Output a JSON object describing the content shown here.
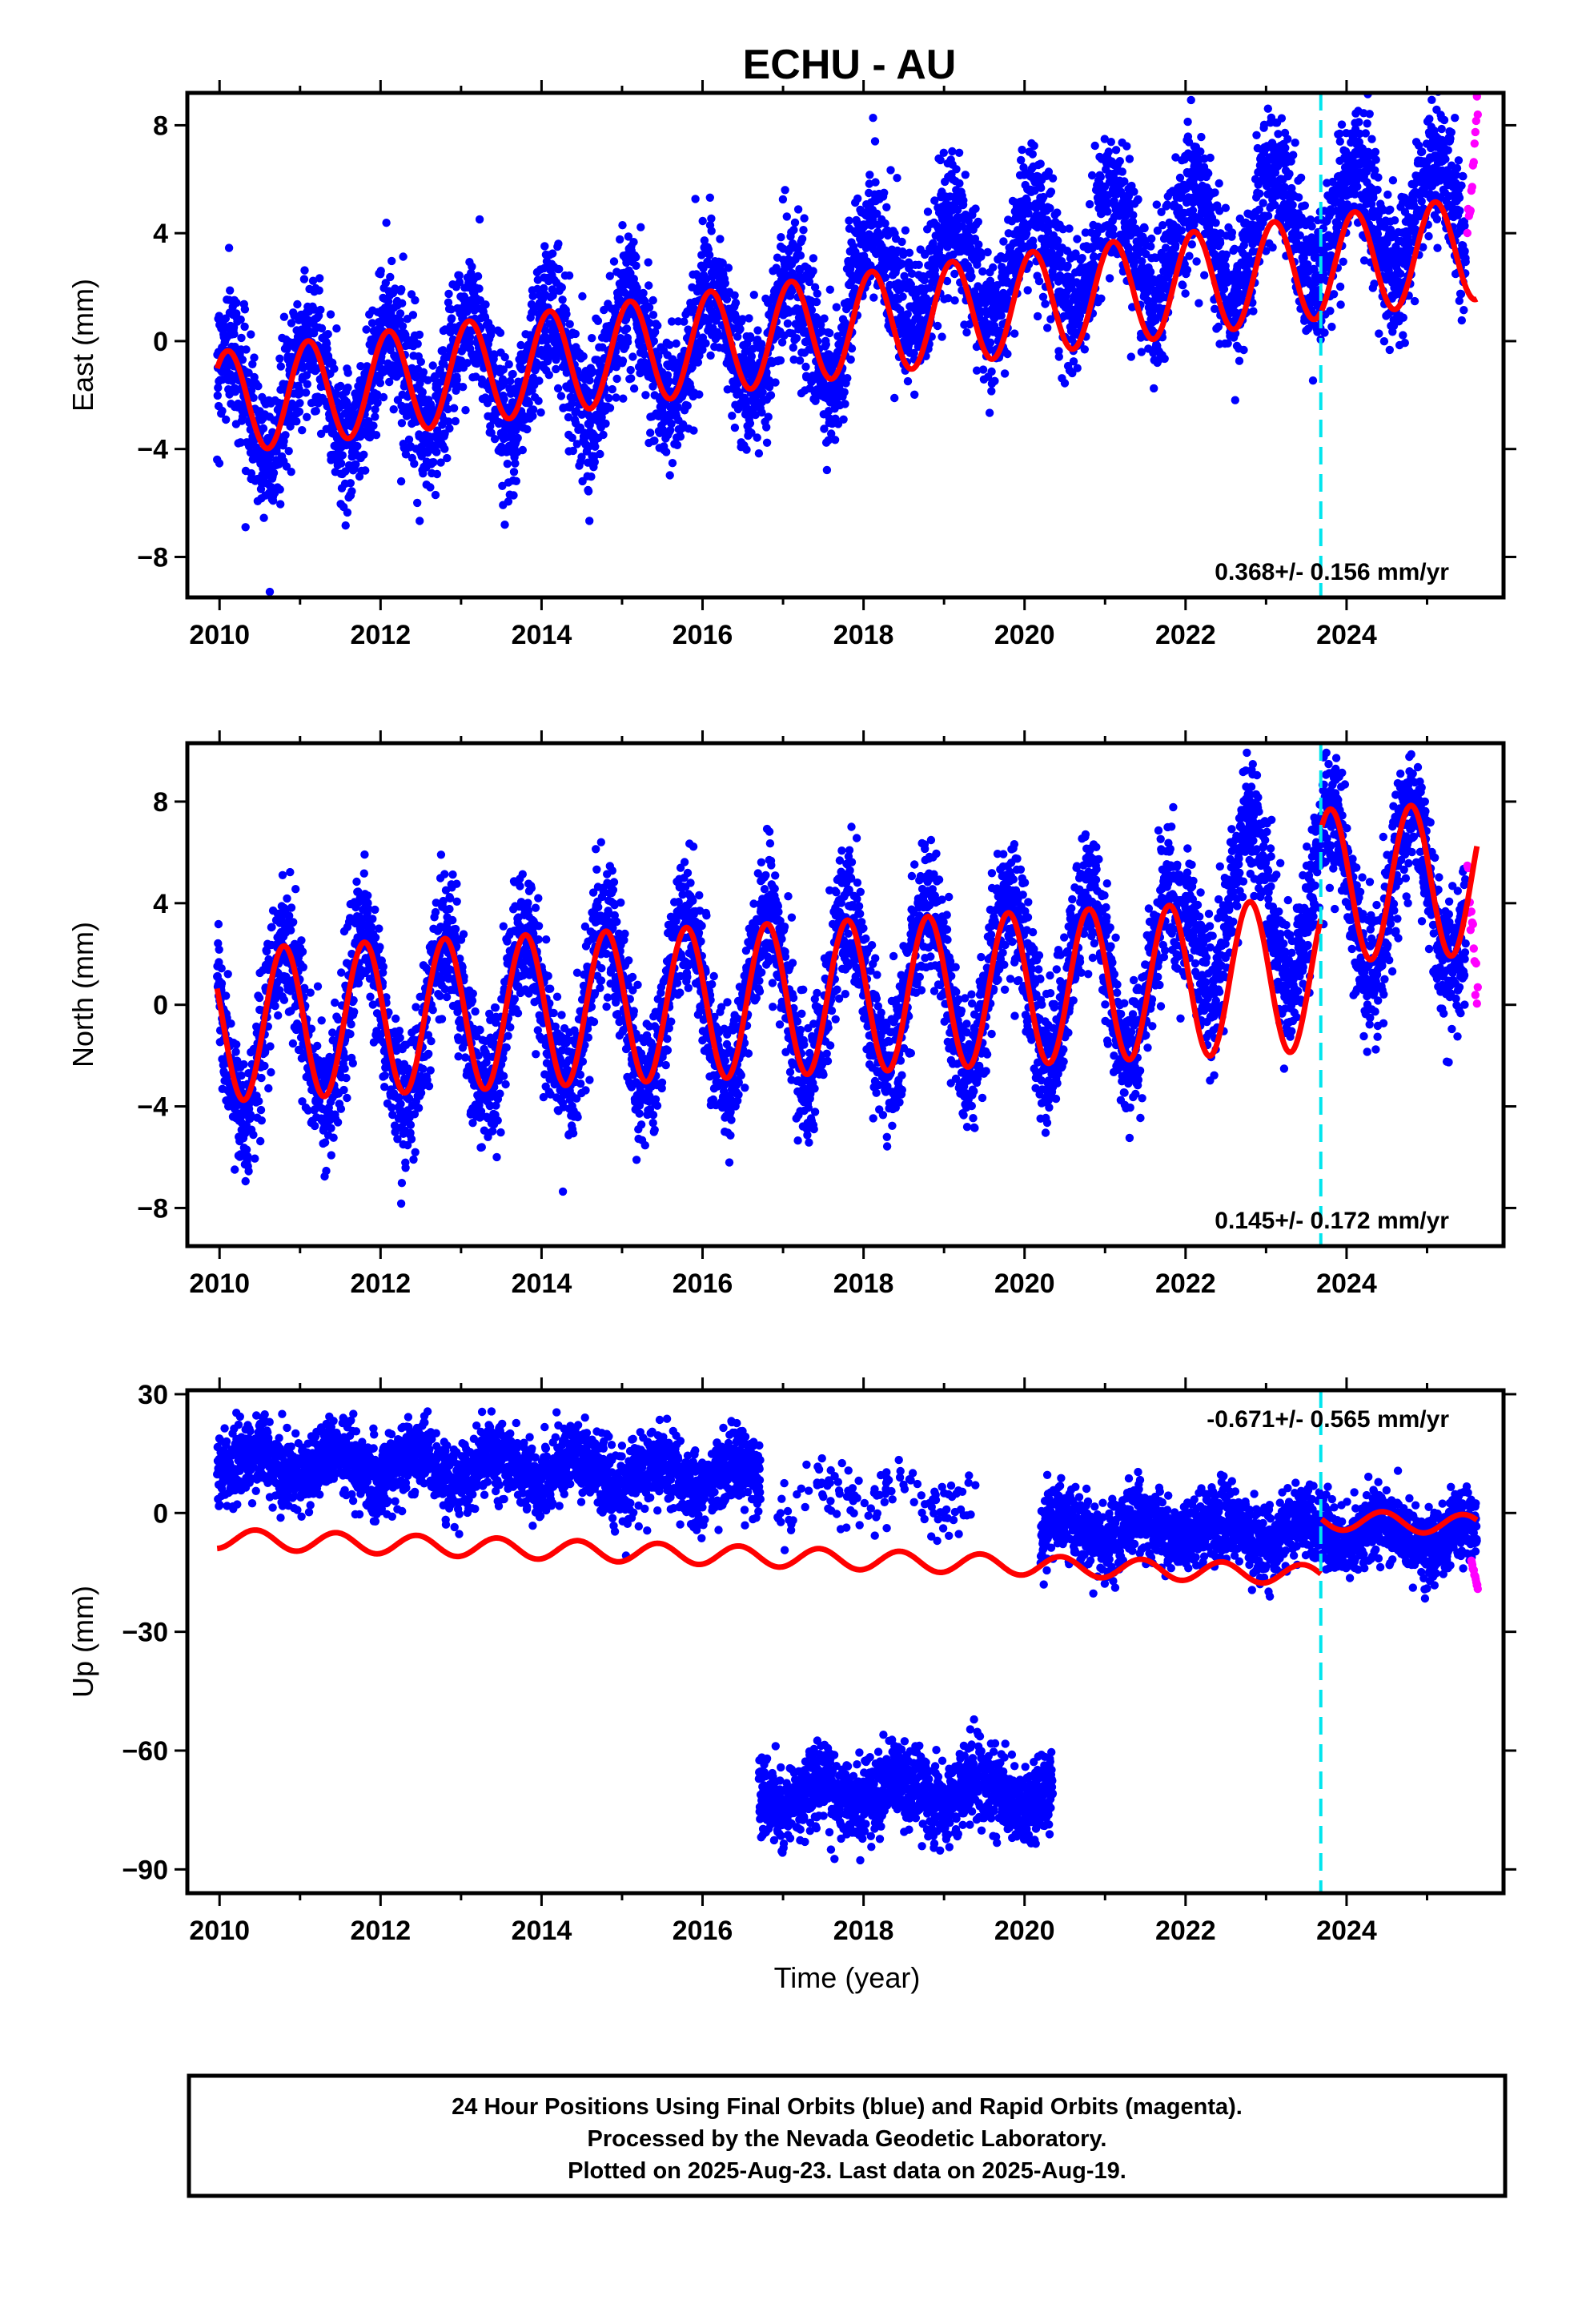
{
  "title": "ECHU - AU",
  "xlabel": "Time (year)",
  "caption_lines": [
    "24 Hour Positions Using Final Orbits (blue) and Rapid Orbits (magenta).",
    "Processed by the Nevada Geodetic Laboratory.",
    "Plotted on 2025-Aug-23. Last data on 2025-Aug-19."
  ],
  "colors": {
    "final": "#0000ff",
    "rapid": "#ff00ff",
    "model": "#ff0000",
    "offset": "#00e5ee"
  },
  "chart_data": [
    {
      "type": "scatter",
      "component": "East",
      "ylabel": "East (mm)",
      "rate": "0.368+/- 0.156 mm/yr",
      "xlim": [
        2009.6,
        2025.95
      ],
      "ylim": [
        -9.5,
        9.2
      ],
      "xticks": [
        2010,
        2012,
        2014,
        2016,
        2018,
        2020,
        2022,
        2024
      ],
      "yticks": [
        -8,
        -4,
        0,
        4,
        8
      ],
      "offset_epoch": 2023.68,
      "model": {
        "base_2010": -2.3,
        "rate": 0.368,
        "amplitude": 1.9,
        "phase": 0.85,
        "seg2_shift": 0.0
      },
      "segments": [
        {
          "start": 2009.97,
          "end": 2025.48,
          "base_2010": -2.3,
          "rate": 0.36,
          "amplitude": 2.0,
          "phase": 0.85,
          "noise": 1.25,
          "step_at": 2017.8,
          "step": 1.6
        }
      ],
      "rapid": {
        "start": 2025.5,
        "end": 2025.63,
        "values_from": 4.0,
        "values_to": 8.8
      }
    },
    {
      "type": "scatter",
      "component": "North",
      "ylabel": "North (mm)",
      "rate": "0.145+/- 0.172 mm/yr",
      "xlim": [
        2009.6,
        2025.95
      ],
      "ylim": [
        -9.5,
        10.3
      ],
      "xticks": [
        2010,
        2012,
        2014,
        2016,
        2018,
        2020,
        2022,
        2024
      ],
      "yticks": [
        -8,
        -4,
        0,
        4,
        8
      ],
      "offset_epoch": 2023.68,
      "model": {
        "base_2010": -0.8,
        "rate": 0.145,
        "amplitude": 3.0,
        "phase": 0.55,
        "seg2_shift": 3.5
      },
      "segments": [
        {
          "start": 2009.97,
          "end": 2025.48,
          "base_2010": -1.0,
          "rate": 0.2,
          "amplitude": 3.2,
          "phase": 0.55,
          "noise": 1.3,
          "step_at": 2022.0,
          "step": 2.5
        }
      ],
      "rapid": {
        "start": 2025.5,
        "end": 2025.63,
        "values_from": 5.0,
        "values_to": 0.2
      }
    },
    {
      "type": "scatter",
      "component": "Up",
      "ylabel": "Up (mm)",
      "rate": "-0.671+/- 0.565 mm/yr",
      "xlim": [
        2009.6,
        2025.95
      ],
      "ylim": [
        -96,
        31
      ],
      "xticks": [
        2010,
        2012,
        2014,
        2016,
        2018,
        2020,
        2022,
        2024
      ],
      "yticks": [
        -90,
        -60,
        -30,
        0,
        30
      ],
      "offset_epoch": 2023.68,
      "model": {
        "base_2010": -6.5,
        "rate": -0.671,
        "amplitude": 2.5,
        "phase": 0.2,
        "seg2_shift": 14.0
      },
      "segments": [
        {
          "start": 2009.97,
          "end": 2016.72,
          "base_2010": 13.0,
          "rate": -0.6,
          "amplitude": 3.5,
          "phase": 0.2,
          "noise": 4.5,
          "density": 1.0
        },
        {
          "start": 2016.9,
          "end": 2019.4,
          "base_2010": 7.5,
          "rate": -0.5,
          "amplitude": 3.0,
          "phase": 0.2,
          "noise": 4.0,
          "density": 0.12
        },
        {
          "start": 2016.7,
          "end": 2020.35,
          "base_2010": -74.0,
          "rate": 0.4,
          "amplitude": 3.0,
          "phase": 0.2,
          "noise": 5.0,
          "density": 1.0
        },
        {
          "start": 2020.2,
          "end": 2025.62,
          "base_2010": 1.0,
          "rate": -0.45,
          "amplitude": 3.0,
          "phase": 0.2,
          "noise": 4.5,
          "density": 1.0
        }
      ],
      "rapid": {
        "start": 2025.55,
        "end": 2025.63,
        "values_from": -12,
        "values_to": -19
      }
    }
  ]
}
